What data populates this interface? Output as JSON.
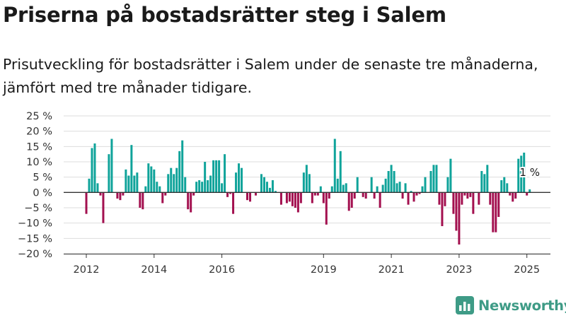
{
  "title": "Priserna på bostadsrätter steg i Salem",
  "subtitle": "Prisutveckling för bostadsrätter i Salem under de senaste tre månaderna, jämfört med tre månader tidigare.",
  "logo": {
    "icon": "bar-chart-logo-icon",
    "text": "Newsworthy"
  },
  "colors": {
    "positive": "#0fa39a",
    "negative": "#a3104f",
    "grid": "#dddddd",
    "axis": "#333333",
    "logo": "#3e9b86"
  },
  "chart_data": {
    "type": "bar",
    "title": "",
    "xlabel": "",
    "ylabel": "",
    "ylim": [
      -20,
      25
    ],
    "yticks": [
      -20,
      -15,
      -10,
      -5,
      0,
      5,
      10,
      15,
      20,
      25
    ],
    "ytick_labels": [
      "−20 %",
      "−15 %",
      "−10 %",
      "−5 %",
      "0 %",
      "5 %",
      "10 %",
      "15 %",
      "20 %",
      "25 %"
    ],
    "xticks": [
      2012,
      2014,
      2016,
      2019,
      2021,
      2023,
      2025
    ],
    "xtick_labels": [
      "2012",
      "2014",
      "2016",
      "2019",
      "2021",
      "2023",
      "2025"
    ],
    "x_start": 2012,
    "periods_per_year": 12,
    "values": [
      -7,
      4.5,
      14.5,
      16,
      3,
      -1,
      -10,
      0,
      12.5,
      17.5,
      0,
      -2,
      -2.5,
      -1,
      7.5,
      5.5,
      15.5,
      5.5,
      6.5,
      -5,
      -5.5,
      2,
      9.5,
      8.5,
      7.5,
      3.5,
      2,
      -3.5,
      -1,
      6,
      8,
      6,
      8,
      13.5,
      17,
      5,
      -5.5,
      -6.5,
      -1,
      3.5,
      4,
      3.5,
      10,
      4,
      5.5,
      10.5,
      10.5,
      10.5,
      3,
      12.5,
      -1.5,
      -0.5,
      -7,
      6.5,
      9.5,
      8,
      0,
      -2.5,
      -3,
      0,
      -1,
      0,
      6,
      5,
      3.5,
      1.5,
      4,
      0.5,
      0,
      -4,
      0,
      -3.5,
      -3,
      -4.5,
      -5,
      -6.5,
      -3.5,
      6.5,
      9,
      6,
      -3.5,
      -1,
      -1,
      2,
      -3.5,
      -10.5,
      -2,
      2,
      17.5,
      4.5,
      13.5,
      2.5,
      3,
      -6,
      -5,
      -2,
      5,
      0,
      -1.5,
      -2,
      0,
      5,
      -2,
      2,
      -5,
      2.5,
      4.5,
      7,
      9,
      7,
      3,
      3.5,
      -2,
      3,
      -4,
      0.5,
      -3,
      -1,
      -0.5,
      2,
      5,
      0,
      7,
      9,
      9,
      -4,
      -11,
      -4.5,
      5,
      11,
      -7,
      -12.5,
      -17,
      -4,
      -1,
      -2,
      -1.5,
      -7,
      0,
      -4,
      7,
      6,
      9,
      -4,
      -13,
      -13,
      -8,
      4,
      5,
      3,
      -1,
      -3,
      -2,
      11,
      12,
      13,
      -1,
      1
    ],
    "annotation": {
      "text": "1 %",
      "target": "last"
    }
  }
}
